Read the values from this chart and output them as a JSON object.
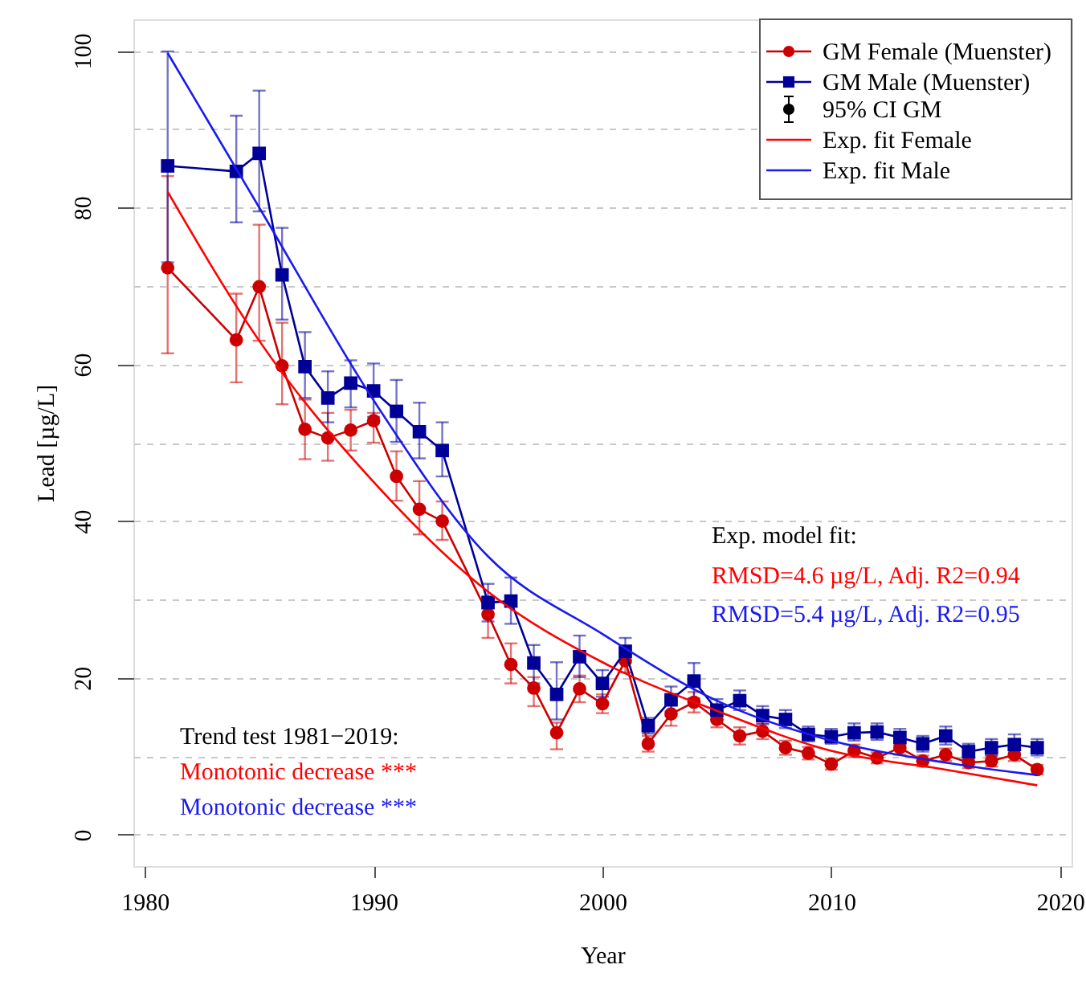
{
  "chart_data": {
    "type": "line",
    "xlabel": "Year",
    "ylabel": "Lead [µg/L]",
    "x": [
      1981,
      1984,
      1985,
      1986,
      1987,
      1988,
      1989,
      1990,
      1991,
      1992,
      1993,
      1995,
      1996,
      1997,
      1998,
      1999,
      2000,
      2001,
      2002,
      2003,
      2004,
      2005,
      2006,
      2007,
      2008,
      2009,
      2010,
      2011,
      2012,
      2013,
      2014,
      2015,
      2016,
      2017,
      2018,
      2019
    ],
    "series": [
      {
        "name": "GM Female (Muenster)",
        "marker": "circle",
        "color": "#cc0000",
        "values": [
          72.3,
          63.1,
          69.9,
          59.8,
          51.7,
          50.6,
          51.6,
          52.8,
          45.7,
          41.5,
          40.0,
          28.1,
          21.7,
          18.7,
          13.0,
          18.6,
          16.7,
          22.2,
          11.6,
          15.4,
          16.9,
          14.7,
          12.6,
          13.2,
          11.1,
          10.4,
          9.0,
          10.7,
          9.8,
          11.1,
          9.4,
          10.2,
          9.2,
          9.4,
          10.2,
          8.3
        ],
        "errors": [
          [
            61.4,
            84.0
          ],
          [
            57.7,
            69.0
          ],
          [
            63.0,
            77.8
          ],
          [
            54.9,
            65.3
          ],
          [
            47.9,
            55.5
          ],
          [
            47.7,
            53.8
          ],
          [
            49.0,
            54.2
          ],
          [
            50.0,
            53.8
          ],
          [
            42.6,
            48.9
          ],
          [
            38.3,
            45.1
          ],
          [
            37.6,
            42.5
          ],
          [
            25.1,
            30.4
          ],
          [
            19.3,
            24.4
          ],
          [
            16.4,
            20.1
          ],
          [
            10.9,
            14.3
          ],
          [
            16.9,
            20.3
          ],
          [
            15.5,
            17.9
          ],
          [
            20.7,
            23.7
          ],
          [
            10.6,
            12.6
          ],
          [
            13.9,
            16.9
          ],
          [
            15.6,
            18.2
          ],
          [
            13.7,
            15.7
          ],
          [
            11.5,
            13.7
          ],
          [
            12.2,
            14.2
          ],
          [
            10.2,
            12.0
          ],
          [
            9.6,
            11.2
          ],
          [
            8.3,
            9.7
          ],
          [
            9.9,
            11.5
          ],
          [
            9.1,
            10.5
          ],
          [
            10.2,
            12.0
          ],
          [
            8.7,
            10.1
          ],
          [
            9.4,
            11.0
          ],
          [
            8.5,
            9.9
          ],
          [
            8.7,
            10.1
          ],
          [
            9.4,
            11.0
          ],
          [
            7.7,
            8.9
          ]
        ]
      },
      {
        "name": "GM Male (Muenster)",
        "marker": "square",
        "color": "#000099",
        "values": [
          85.3,
          84.6,
          86.9,
          71.4,
          59.7,
          55.7,
          57.6,
          56.6,
          54.0,
          51.4,
          49.0,
          29.6,
          29.8,
          21.9,
          17.9,
          22.7,
          19.3,
          23.4,
          13.9,
          17.2,
          19.6,
          15.9,
          17.1,
          15.2,
          14.7,
          12.8,
          12.5,
          13.0,
          13.1,
          12.4,
          11.6,
          12.6,
          10.6,
          11.1,
          11.5,
          11.1
        ],
        "errors": [
          [
            73.0,
            99.9
          ],
          [
            78.1,
            91.7
          ],
          [
            79.5,
            94.9
          ],
          [
            65.7,
            77.4
          ],
          [
            55.7,
            64.1
          ],
          [
            52.6,
            59.1
          ],
          [
            54.5,
            60.5
          ],
          [
            53.3,
            60.1
          ],
          [
            50.1,
            58.0
          ],
          [
            48.0,
            55.1
          ],
          [
            45.7,
            52.6
          ],
          [
            27.2,
            32.0
          ],
          [
            26.9,
            32.8
          ],
          [
            19.3,
            24.2
          ],
          [
            14.7,
            22.0
          ],
          [
            20.1,
            25.4
          ],
          [
            17.6,
            21.0
          ],
          [
            21.9,
            25.1
          ],
          [
            12.9,
            14.9
          ],
          [
            15.7,
            18.9
          ],
          [
            17.4,
            21.9
          ],
          [
            14.6,
            17.3
          ],
          [
            15.9,
            18.4
          ],
          [
            14.1,
            16.4
          ],
          [
            13.6,
            15.9
          ],
          [
            11.9,
            13.8
          ],
          [
            11.6,
            13.5
          ],
          [
            12.0,
            14.2
          ],
          [
            12.1,
            14.2
          ],
          [
            11.4,
            13.5
          ],
          [
            10.6,
            12.6
          ],
          [
            11.5,
            13.8
          ],
          [
            9.7,
            11.6
          ],
          [
            10.1,
            12.2
          ],
          [
            10.4,
            12.8
          ],
          [
            10.1,
            12.2
          ]
        ]
      },
      {
        "name": "95% CI GM",
        "type": "scatter",
        "marker": "circle",
        "color": "#000000",
        "values": [
          null,
          null,
          null,
          null,
          null,
          null,
          null,
          null,
          null,
          null,
          null,
          null,
          null,
          null,
          null,
          null,
          null,
          null,
          null,
          null,
          null,
          null,
          null,
          null,
          null,
          null,
          null,
          null,
          null,
          null,
          null,
          null,
          null,
          null,
          null,
          null
        ]
      },
      {
        "name": "Exp. fit Female",
        "marker": "none",
        "color": "#ff0000",
        "x": [
          1981,
          1985,
          1990,
          1995,
          2000,
          2005,
          2010,
          2015,
          2019
        ],
        "values": [
          82,
          63,
          45,
          31,
          22,
          15.8,
          10.7,
          8.3,
          6.3
        ]
      },
      {
        "name": "Exp. fit Male",
        "marker": "none",
        "color": "#1a1aee",
        "x": [
          1981,
          1985,
          1990,
          1995,
          2000,
          2005,
          2010,
          2015,
          2019
        ],
        "values": [
          99.7,
          80,
          55.4,
          35.5,
          25.6,
          17.1,
          12.0,
          9.2,
          7.6
        ]
      }
    ],
    "annotations": [
      "Exp. model fit:",
      "RMSD=4.6 µg/L, Adj. R2=0.94",
      "RMSD=5.4 µg/L, Adj. R2=0.95",
      "Trend test 1981−2019:",
      "Monotonic decrease  ***",
      "Monotonic decrease  ***"
    ],
    "xlim": [
      1979.5,
      2020.5
    ],
    "xticks": [
      1980,
      1990,
      2000,
      2010,
      2020
    ],
    "ylim": [
      -4,
      104
    ],
    "yticks": [
      0,
      {
        "value": 10,
        "label": null
      },
      20,
      {
        "value": 30,
        "label": null
      },
      40,
      {
        "value": 50,
        "label": null
      },
      60,
      {
        "value": 70,
        "label": null
      },
      80,
      {
        "value": 90,
        "label": null
      },
      100
    ],
    "grid": "y",
    "legend": "top right"
  }
}
